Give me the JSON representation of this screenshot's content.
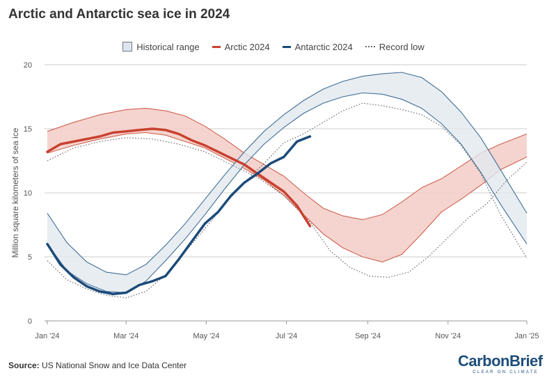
{
  "header": {
    "title": "Arctic and Antarctic sea ice in 2024"
  },
  "legend": {
    "range": "Historical range",
    "arctic": "Arctic 2024",
    "antarctic": "Antarctic 2024",
    "record": "Record low"
  },
  "footer": {
    "source_label": "Source:",
    "source_text": "US National Snow and Ice Data Center"
  },
  "logo": {
    "main": "CarbonBrief",
    "sub": "CLEAR ON CLIMATE"
  },
  "colors": {
    "arctic": "#c8412f",
    "arctic_range_fill": "#f3cdc7",
    "antarctic": "#1b4a7a",
    "antarctic_range_fill": "#e2e8ef",
    "antarctic_range_edge": "#3f6d95",
    "arctic_range_edge": "#d0604f",
    "record": "#666666",
    "grid": "#cccccc"
  },
  "chart_data": {
    "type": "line",
    "title": "Arctic and Antarctic sea ice in 2024",
    "ylabel": "Million square kilometers of sea ice",
    "xlabel": "",
    "ylim": [
      0,
      20
    ],
    "yticks": [
      0,
      5,
      10,
      15,
      20
    ],
    "xlim": [
      0,
      365
    ],
    "xticks": [
      {
        "day": 0,
        "label": "Jan '24"
      },
      {
        "day": 60,
        "label": "Mar '24"
      },
      {
        "day": 121,
        "label": "May '24"
      },
      {
        "day": 182,
        "label": "Jul '24"
      },
      {
        "day": 244,
        "label": "Sep '24"
      },
      {
        "day": 305,
        "label": "Nov '24"
      },
      {
        "day": 366,
        "label": "Jan '25"
      }
    ],
    "grid": "horizontal",
    "legend_position": "top",
    "series": [
      {
        "name": "Historical range",
        "region": "Arctic",
        "kind": "band",
        "x": [
          0,
          20,
          40,
          60,
          75,
          90,
          105,
          120,
          135,
          150,
          165,
          180,
          195,
          210,
          225,
          240,
          255,
          270,
          285,
          300,
          315,
          330,
          345,
          365
        ],
        "upper": [
          14.8,
          15.5,
          16.1,
          16.5,
          16.6,
          16.4,
          16.0,
          15.2,
          14.2,
          13.1,
          12.2,
          11.3,
          10.0,
          8.8,
          8.2,
          7.9,
          8.3,
          9.3,
          10.4,
          11.1,
          12.1,
          13.1,
          13.8,
          14.6
        ],
        "lower": [
          13.1,
          13.7,
          14.2,
          14.6,
          14.7,
          14.5,
          14.0,
          13.5,
          12.7,
          11.9,
          11.0,
          9.8,
          8.3,
          6.8,
          5.7,
          5.0,
          4.6,
          5.2,
          6.8,
          8.5,
          9.5,
          10.6,
          11.8,
          12.8
        ]
      },
      {
        "name": "Historical range",
        "region": "Antarctic",
        "kind": "band",
        "x": [
          0,
          15,
          30,
          45,
          60,
          75,
          90,
          105,
          120,
          135,
          150,
          165,
          180,
          195,
          210,
          225,
          240,
          255,
          270,
          285,
          300,
          315,
          330,
          345,
          365
        ],
        "upper": [
          8.4,
          6.1,
          4.6,
          3.8,
          3.6,
          4.4,
          5.9,
          7.6,
          9.5,
          11.4,
          13.2,
          14.8,
          16.1,
          17.2,
          18.1,
          18.7,
          19.1,
          19.3,
          19.4,
          19.0,
          17.9,
          16.3,
          14.3,
          11.8,
          8.4
        ],
        "lower": [
          6.0,
          3.9,
          2.9,
          2.3,
          2.2,
          3.1,
          4.7,
          6.4,
          8.3,
          10.3,
          12.2,
          13.8,
          15.1,
          16.2,
          17.0,
          17.5,
          17.8,
          17.7,
          17.3,
          16.6,
          15.4,
          13.8,
          11.6,
          9.1,
          6.0
        ]
      },
      {
        "name": "Arctic 2024",
        "kind": "line",
        "x": [
          0,
          10,
          20,
          30,
          40,
          50,
          60,
          70,
          80,
          90,
          100,
          110,
          120,
          130,
          140,
          150,
          160,
          170,
          180,
          190,
          200
        ],
        "values": [
          13.2,
          13.8,
          14.0,
          14.2,
          14.4,
          14.7,
          14.8,
          14.9,
          15.0,
          14.9,
          14.6,
          14.1,
          13.7,
          13.2,
          12.7,
          12.2,
          11.5,
          10.8,
          10.1,
          9.0,
          7.4
        ]
      },
      {
        "name": "Antarctic 2024",
        "kind": "line",
        "x": [
          0,
          10,
          20,
          30,
          40,
          50,
          60,
          70,
          80,
          90,
          100,
          110,
          120,
          130,
          140,
          150,
          160,
          170,
          180,
          190,
          200
        ],
        "values": [
          6.0,
          4.4,
          3.4,
          2.7,
          2.3,
          2.1,
          2.2,
          2.8,
          3.1,
          3.5,
          4.8,
          6.2,
          7.6,
          8.5,
          9.8,
          10.8,
          11.5,
          12.3,
          12.8,
          14.0,
          14.4
        ]
      },
      {
        "name": "Record low",
        "region": "Arctic",
        "kind": "dotted",
        "x": [
          0,
          20,
          40,
          60,
          80,
          100,
          120,
          140,
          160,
          180,
          200,
          215,
          230,
          245,
          260,
          275,
          290,
          305,
          320,
          335,
          350,
          365
        ],
        "values": [
          12.5,
          13.5,
          14.0,
          14.3,
          14.2,
          13.8,
          13.2,
          12.2,
          11.2,
          9.8,
          7.7,
          5.5,
          4.2,
          3.5,
          3.4,
          3.8,
          5.0,
          6.5,
          8.0,
          9.2,
          11.0,
          12.4
        ]
      },
      {
        "name": "Record low",
        "region": "Antarctic",
        "kind": "dotted",
        "x": [
          0,
          15,
          30,
          45,
          60,
          75,
          90,
          105,
          120,
          135,
          150,
          165,
          180,
          195,
          210,
          225,
          240,
          255,
          270,
          285,
          300,
          315,
          330,
          345,
          365
        ],
        "values": [
          4.7,
          3.2,
          2.5,
          2.0,
          1.8,
          2.3,
          3.6,
          5.4,
          7.2,
          9.1,
          10.8,
          12.3,
          13.9,
          14.6,
          15.5,
          16.4,
          17.0,
          16.8,
          16.5,
          16.1,
          15.2,
          13.7,
          11.5,
          8.3,
          4.9
        ]
      }
    ]
  }
}
